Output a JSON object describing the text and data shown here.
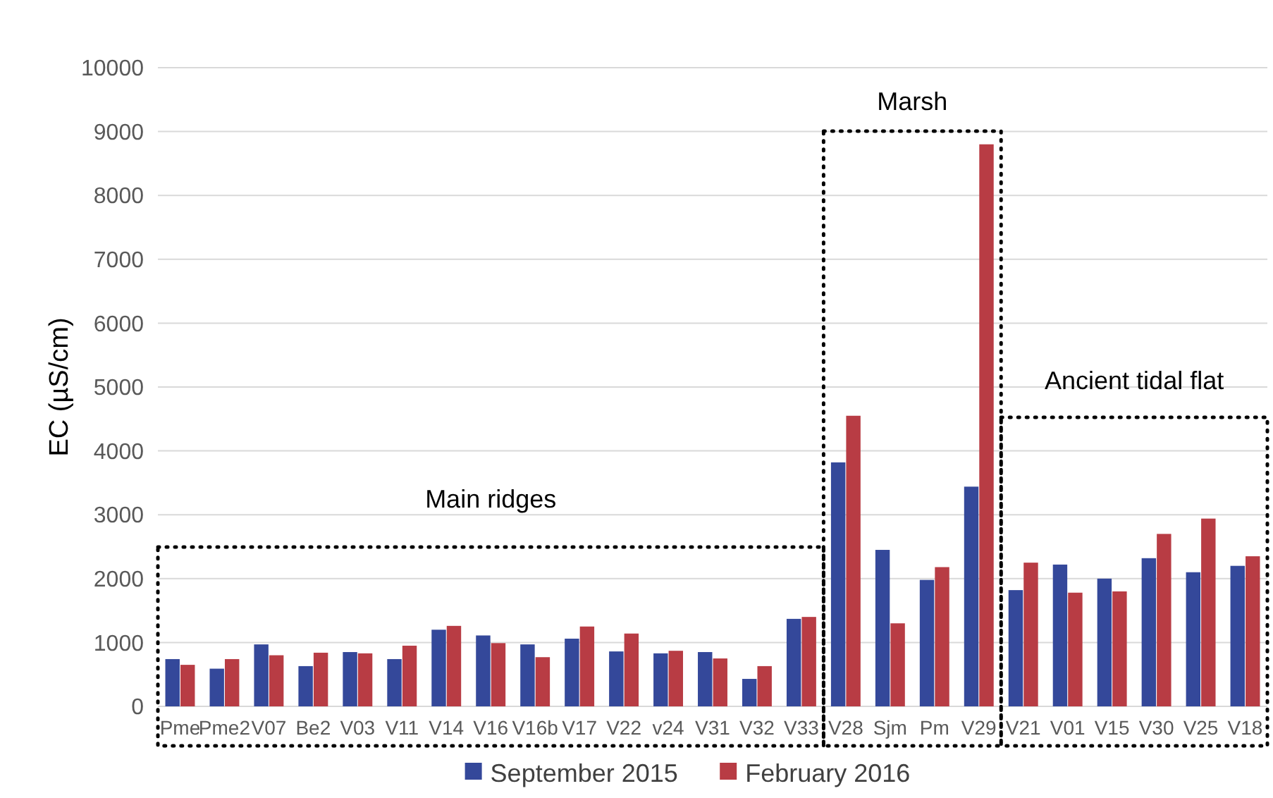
{
  "chart_data": {
    "type": "bar",
    "ylabel": "EC (µS/cm)",
    "categories": [
      "Pme",
      "Pme2",
      "V07",
      "Be2",
      "V03",
      "V11",
      "V14",
      "V16",
      "V16b",
      "V17",
      "V22",
      "v24",
      "V31",
      "V32",
      "V33",
      "V28",
      "Sjm",
      "Pm",
      "V29",
      "V21",
      "V01",
      "V15",
      "V30",
      "V25",
      "V18"
    ],
    "series": [
      {
        "name": "September 2015",
        "color": "#34489a",
        "values": [
          740,
          590,
          970,
          630,
          850,
          740,
          1200,
          1110,
          970,
          1060,
          860,
          830,
          850,
          430,
          1370,
          3820,
          2450,
          1980,
          3440,
          1820,
          2220,
          2000,
          2320,
          2100,
          2200
        ]
      },
      {
        "name": "February 2016",
        "color": "#b83c44",
        "values": [
          650,
          740,
          800,
          840,
          830,
          950,
          1260,
          990,
          770,
          1250,
          1140,
          870,
          750,
          630,
          1400,
          4550,
          1300,
          2180,
          8800,
          2250,
          1780,
          1800,
          2700,
          2940,
          2350
        ]
      }
    ],
    "ylim": [
      0,
      10000
    ],
    "yticks": [
      0,
      1000,
      2000,
      3000,
      4000,
      5000,
      6000,
      7000,
      8000,
      9000,
      10000
    ],
    "grid": "y",
    "legend": "bottom",
    "annotations": [
      "Main ridges",
      "Marsh",
      "Ancient tidal flat"
    ]
  }
}
